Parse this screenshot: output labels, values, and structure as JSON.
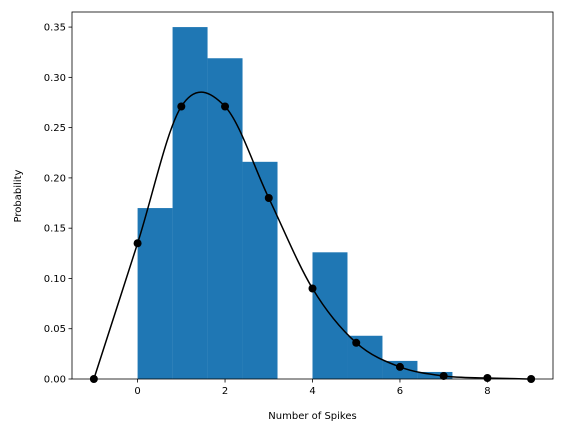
{
  "chart_data": {
    "type": "bar",
    "title": "",
    "xlabel": "Number of Spikes",
    "ylabel": "Probability",
    "xlim": [
      -1.5,
      9.5
    ],
    "ylim": [
      0,
      0.365
    ],
    "grid": false,
    "legend": "none",
    "xticks": [
      0,
      2,
      4,
      6,
      8
    ],
    "xtick_labels": [
      "0",
      "2",
      "4",
      "6",
      "8"
    ],
    "yticks": [
      0.0,
      0.05,
      0.1,
      0.15,
      0.2,
      0.25,
      0.3,
      0.35
    ],
    "ytick_labels": [
      "0.00",
      "0.05",
      "0.10",
      "0.15",
      "0.20",
      "0.25",
      "0.30",
      "0.35"
    ],
    "colors": {
      "bars": "#1f77b4",
      "line": "#000000"
    },
    "histogram": {
      "bin_edges": [
        0,
        0.8,
        1.6,
        2.4,
        3.2,
        4.0,
        4.8,
        5.6,
        6.4,
        7.2,
        8.0
      ],
      "values": [
        0.17,
        0.35,
        0.319,
        0.216,
        0.0,
        0.126,
        0.043,
        0.018,
        0.007,
        0.0
      ]
    },
    "series": [
      {
        "type": "line-with-markers",
        "x": [
          -1,
          0,
          1,
          2,
          3,
          4,
          5,
          6,
          7,
          8,
          9
        ],
        "y": [
          0.0,
          0.135,
          0.271,
          0.271,
          0.18,
          0.09,
          0.036,
          0.012,
          0.003,
          0.001,
          0.0
        ]
      }
    ]
  }
}
